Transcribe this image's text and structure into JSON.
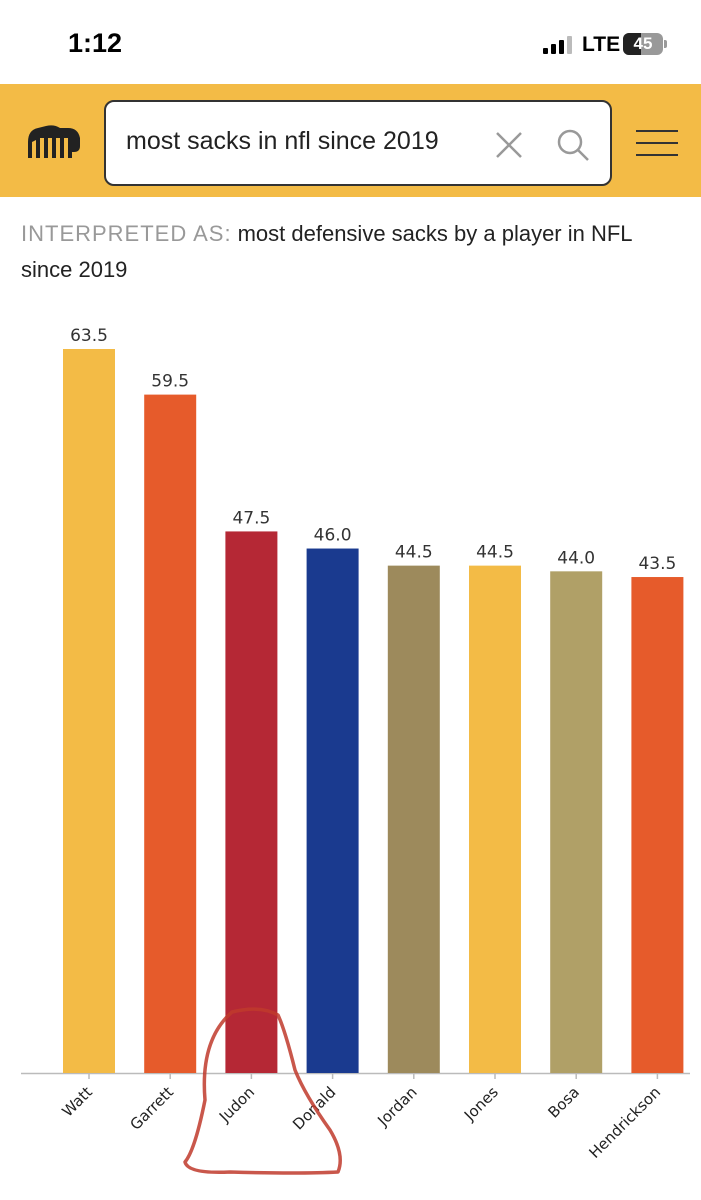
{
  "status_bar": {
    "time": "1:12",
    "network": "LTE",
    "battery": "45",
    "battery_level": 0.45
  },
  "header": {
    "logo_icon": "statmuse-logo-icon",
    "search": {
      "value": "most sacks in nfl since 2019"
    },
    "clear_icon": "close-icon",
    "search_icon": "search-icon",
    "menu_icon": "hamburger-menu-icon",
    "accent_color": "#f3bb46"
  },
  "interpretation": {
    "label": "INTERPRETED AS:",
    "text": "most defensive sacks by a player in NFL since 2019"
  },
  "chart_data": {
    "type": "bar",
    "categories": [
      "Watt",
      "Garrett",
      "Judon",
      "Donald",
      "Jordan",
      "Jones",
      "Bosa",
      "Hendrickson"
    ],
    "values": [
      63.5,
      59.5,
      47.5,
      46.0,
      44.5,
      44.5,
      44.0,
      43.5
    ],
    "value_labels": [
      "63.5",
      "59.5",
      "47.5",
      "46.0",
      "44.5",
      "44.5",
      "44.0",
      "43.5"
    ],
    "colors": [
      "#f3bb46",
      "#e65b2b",
      "#b52835",
      "#1a3a8f",
      "#9d8a5c",
      "#f3bb46",
      "#b0a067",
      "#e65b2b"
    ],
    "ylim": [
      0,
      63.5
    ],
    "title": "",
    "xlabel": "",
    "ylabel": "",
    "annotation": "hand-drawn red circle around Judon bar"
  }
}
